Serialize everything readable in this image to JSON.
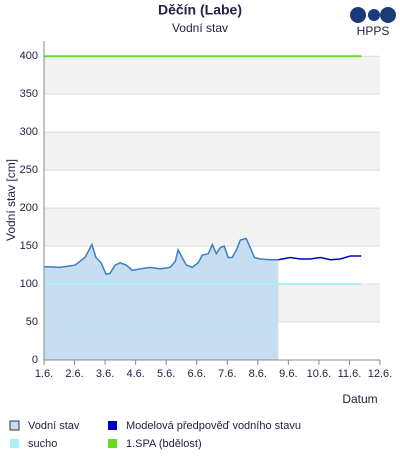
{
  "chart_data": {
    "type": "line",
    "title": "Děčín (Labe)",
    "subtitle": "Vodní stav",
    "logo": "HPPS",
    "ylabel": "Vodní stav [cm]",
    "xlabel": "Datum",
    "xlim": [
      1,
      12
    ],
    "ylim": [
      0,
      420
    ],
    "xticks": [
      {
        "value": 1,
        "label": "1.6."
      },
      {
        "value": 2,
        "label": "2.6."
      },
      {
        "value": 3,
        "label": "3.6."
      },
      {
        "value": 4,
        "label": "4.6."
      },
      {
        "value": 5,
        "label": "5.6."
      },
      {
        "value": 6,
        "label": "6.6."
      },
      {
        "value": 7,
        "label": "7.6."
      },
      {
        "value": 8,
        "label": "8.6."
      },
      {
        "value": 9,
        "label": "9.6."
      },
      {
        "value": 10,
        "label": "10.6."
      },
      {
        "value": 11,
        "label": "11.6."
      },
      {
        "value": 12,
        "label": "12.6."
      }
    ],
    "yticks": [
      0,
      50,
      100,
      150,
      200,
      250,
      300,
      350,
      400
    ],
    "grid": true,
    "series": [
      {
        "name": "Vodní stav",
        "color": "#3b7fc4",
        "fill": "#c4dcf1",
        "x": [
          1.0,
          1.52,
          2.02,
          2.34,
          2.57,
          2.7,
          2.87,
          3.03,
          3.16,
          3.33,
          3.49,
          3.69,
          3.89,
          4.15,
          4.48,
          4.8,
          5.13,
          5.3,
          5.39,
          5.52,
          5.66,
          5.85,
          6.05,
          6.18,
          6.38,
          6.51,
          6.64,
          6.77,
          6.9,
          7.03,
          7.16,
          7.3,
          7.43,
          7.62,
          7.75,
          7.89,
          8.08,
          8.41,
          8.67
        ],
        "values": [
          123,
          122,
          125,
          135,
          152,
          135,
          128,
          113,
          114,
          125,
          128,
          125,
          118,
          120,
          122,
          120,
          122,
          130,
          145,
          135,
          125,
          122,
          128,
          138,
          140,
          152,
          140,
          148,
          150,
          135,
          135,
          145,
          158,
          160,
          148,
          135,
          133,
          132,
          132
        ]
      },
      {
        "name": "Modelová předpověď vodního stavu",
        "color": "#0000c0",
        "x": [
          8.67,
          9.07,
          9.39,
          9.72,
          10.05,
          10.38,
          10.7,
          11.03,
          11.39
        ],
        "values": [
          132,
          135,
          133,
          133,
          135,
          132,
          133,
          137,
          137
        ]
      },
      {
        "name": "sucho",
        "color": "#a8f4f4",
        "x": [
          1,
          11.39
        ],
        "values": [
          100,
          100
        ]
      },
      {
        "name": "1.SPA (bdělost)",
        "color": "#66dd22",
        "x": [
          1,
          11.39
        ],
        "values": [
          400,
          400
        ]
      }
    ]
  }
}
